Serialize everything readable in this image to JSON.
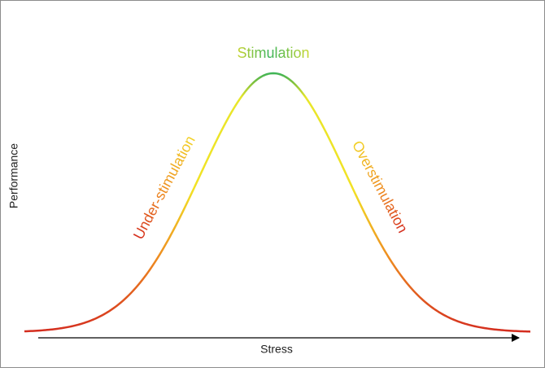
{
  "labels": {
    "peak": "Stimulation",
    "left": "Under-stimulation",
    "right": "Overstimulation"
  },
  "axes": {
    "x": "Stress",
    "y": "Performance"
  }
}
